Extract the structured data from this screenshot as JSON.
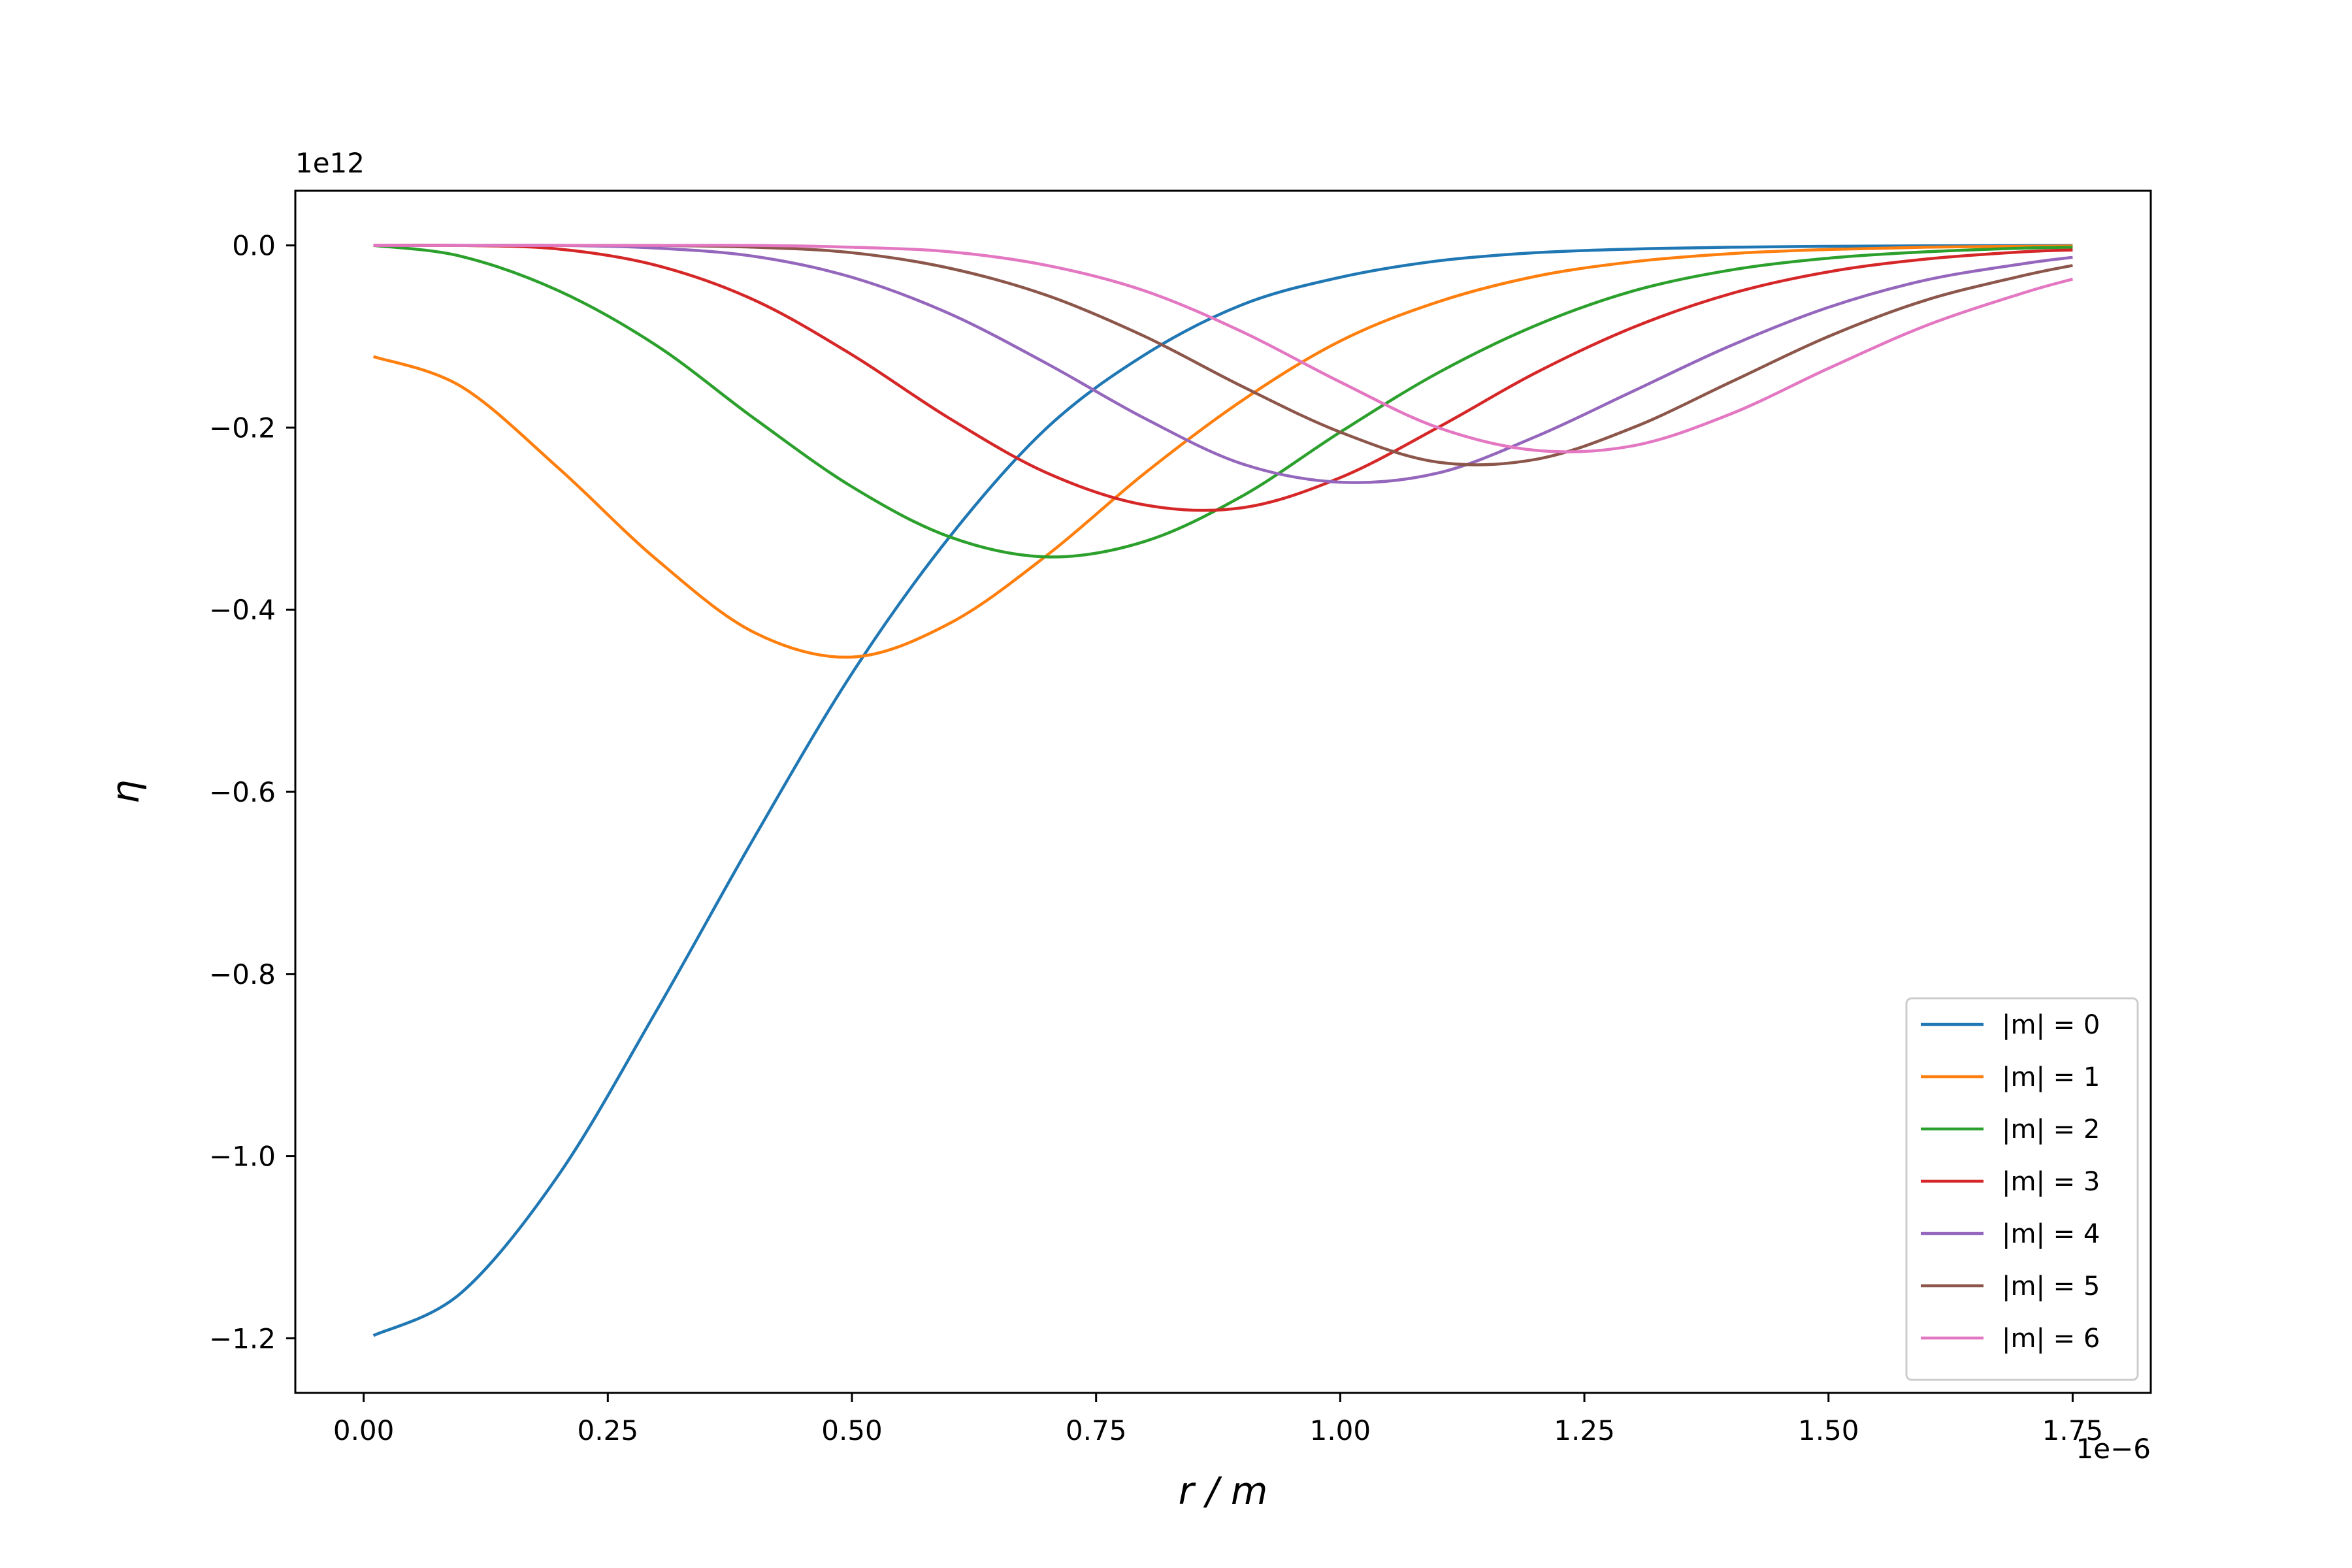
{
  "chart_data": {
    "type": "line",
    "title": "",
    "xlabel": "r / m",
    "ylabel": "η",
    "x_offset_label": "1e−6",
    "y_offset_label": "1e12",
    "xlim": [
      -0.07,
      1.83
    ],
    "ylim": [
      -1.26,
      0.06
    ],
    "x_ticks": [
      0.0,
      0.25,
      0.5,
      0.75,
      1.0,
      1.25,
      1.5,
      1.75
    ],
    "x_tick_labels": [
      "0.00",
      "0.25",
      "0.50",
      "0.75",
      "1.00",
      "1.25",
      "1.50",
      "1.75"
    ],
    "y_ticks": [
      0.0,
      -0.2,
      -0.4,
      -0.6,
      -0.8,
      -1.0,
      -1.2
    ],
    "y_tick_labels": [
      "0.0",
      "−0.2",
      "−0.4",
      "−0.6",
      "−0.8",
      "−1.0",
      "−1.2"
    ],
    "grid": false,
    "legend_position": "lower-right",
    "series": [
      {
        "name": "|m| = 0",
        "color": "#1f77b4",
        "x": [
          0.01,
          0.1,
          0.2,
          0.3,
          0.4,
          0.5,
          0.6,
          0.7,
          0.8,
          0.9,
          1.0,
          1.1,
          1.2,
          1.3,
          1.4,
          1.5,
          1.6,
          1.7,
          1.75
        ],
        "y": [
          -1.197,
          -1.15,
          -1.02,
          -0.84,
          -0.65,
          -0.47,
          -0.32,
          -0.2,
          -0.12,
          -0.065,
          -0.035,
          -0.017,
          -0.008,
          -0.004,
          -0.002,
          -0.001,
          -0.0005,
          -0.0002,
          -0.0001
        ]
      },
      {
        "name": "|m| = 1",
        "color": "#ff7f0e",
        "x": [
          0.01,
          0.1,
          0.2,
          0.3,
          0.4,
          0.5,
          0.6,
          0.7,
          0.8,
          0.9,
          1.0,
          1.1,
          1.2,
          1.3,
          1.4,
          1.5,
          1.6,
          1.7,
          1.75
        ],
        "y": [
          -0.122,
          -0.155,
          -0.245,
          -0.345,
          -0.425,
          -0.452,
          -0.415,
          -0.34,
          -0.25,
          -0.17,
          -0.105,
          -0.062,
          -0.034,
          -0.018,
          -0.009,
          -0.0045,
          -0.002,
          -0.001,
          -0.0006
        ]
      },
      {
        "name": "|m| = 2",
        "color": "#2ca02c",
        "x": [
          0.01,
          0.1,
          0.2,
          0.3,
          0.4,
          0.5,
          0.6,
          0.7,
          0.8,
          0.9,
          1.0,
          1.1,
          1.2,
          1.3,
          1.4,
          1.5,
          1.6,
          1.7,
          1.75
        ],
        "y": [
          0.0,
          -0.012,
          -0.05,
          -0.11,
          -0.19,
          -0.265,
          -0.32,
          -0.342,
          -0.325,
          -0.275,
          -0.205,
          -0.14,
          -0.088,
          -0.05,
          -0.027,
          -0.014,
          -0.007,
          -0.003,
          -0.002
        ]
      },
      {
        "name": "|m| = 3",
        "color": "#d62728",
        "x": [
          0.01,
          0.1,
          0.2,
          0.3,
          0.4,
          0.5,
          0.6,
          0.7,
          0.8,
          0.9,
          1.0,
          1.1,
          1.2,
          1.3,
          1.4,
          1.5,
          1.6,
          1.7,
          1.75
        ],
        "y": [
          0.0,
          0.0,
          -0.004,
          -0.022,
          -0.06,
          -0.12,
          -0.19,
          -0.25,
          -0.285,
          -0.288,
          -0.255,
          -0.2,
          -0.14,
          -0.09,
          -0.053,
          -0.029,
          -0.015,
          -0.007,
          -0.005
        ]
      },
      {
        "name": "|m| = 4",
        "color": "#9467bd",
        "x": [
          0.01,
          0.1,
          0.2,
          0.3,
          0.4,
          0.5,
          0.6,
          0.7,
          0.8,
          0.9,
          1.0,
          1.1,
          1.2,
          1.3,
          1.4,
          1.5,
          1.6,
          1.7,
          1.75
        ],
        "y": [
          0.0,
          0.0,
          0.0,
          -0.003,
          -0.012,
          -0.035,
          -0.075,
          -0.13,
          -0.19,
          -0.24,
          -0.26,
          -0.25,
          -0.21,
          -0.16,
          -0.11,
          -0.068,
          -0.038,
          -0.02,
          -0.013
        ]
      },
      {
        "name": "|m| = 5",
        "color": "#8c564b",
        "x": [
          0.01,
          0.1,
          0.2,
          0.3,
          0.4,
          0.5,
          0.6,
          0.7,
          0.8,
          0.9,
          1.0,
          1.1,
          1.2,
          1.3,
          1.4,
          1.5,
          1.6,
          1.7,
          1.75
        ],
        "y": [
          0.0,
          0.0,
          0.0,
          0.0,
          -0.002,
          -0.008,
          -0.025,
          -0.055,
          -0.1,
          -0.155,
          -0.205,
          -0.238,
          -0.235,
          -0.2,
          -0.15,
          -0.1,
          -0.06,
          -0.033,
          -0.022
        ]
      },
      {
        "name": "|m| = 6",
        "color": "#e377c2",
        "x": [
          0.01,
          0.1,
          0.2,
          0.3,
          0.4,
          0.5,
          0.6,
          0.7,
          0.8,
          0.9,
          1.0,
          1.1,
          1.2,
          1.3,
          1.4,
          1.5,
          1.6,
          1.7,
          1.75
        ],
        "y": [
          0.0,
          0.0,
          0.0,
          0.0,
          0.0,
          -0.002,
          -0.007,
          -0.022,
          -0.05,
          -0.095,
          -0.15,
          -0.2,
          -0.225,
          -0.22,
          -0.185,
          -0.135,
          -0.088,
          -0.052,
          -0.037
        ]
      }
    ]
  }
}
